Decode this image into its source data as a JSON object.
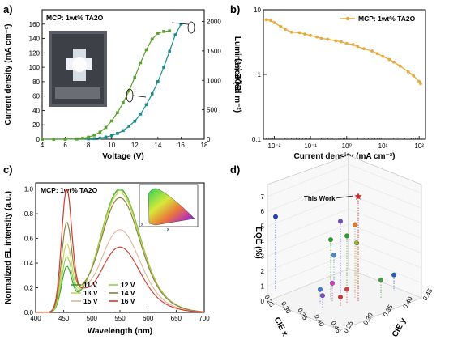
{
  "chart_data": [
    {
      "panel": "a)",
      "type": "line",
      "annotation": "MCP: 1wt% TA2O",
      "xlabel": "Voltage (V)",
      "ylabel": "Current density (mA cm⁻²)",
      "y2label": "Luminance (cd m⁻²)",
      "xlim": [
        4,
        18
      ],
      "ylim": [
        0,
        180
      ],
      "y2lim": [
        0,
        2200
      ],
      "xticks": [
        "4",
        "6",
        "8",
        "10",
        "12",
        "14",
        "16",
        "18"
      ],
      "yticks": [
        "0",
        "20",
        "40",
        "60",
        "80",
        "100",
        "120",
        "140",
        "160"
      ],
      "y2ticks": [
        "0",
        "500",
        "1000",
        "1500",
        "2000"
      ],
      "series": [
        {
          "axis": "left",
          "color": "#1a8c8c",
          "x": [
            4,
            5,
            6,
            7,
            8,
            8.5,
            9,
            9.5,
            10,
            10.5,
            11,
            11.5,
            12,
            12.5,
            13,
            13.5,
            14,
            14.5,
            15,
            15.5,
            16
          ],
          "values": [
            0,
            0,
            0.1,
            0.2,
            0.5,
            0.8,
            1.5,
            3,
            5,
            8,
            12,
            18,
            25,
            35,
            48,
            63,
            80,
            100,
            122,
            145,
            160
          ]
        },
        {
          "axis": "right",
          "color": "#5aa02c",
          "x": [
            4,
            5,
            6,
            7,
            7.5,
            8,
            8.5,
            9,
            9.5,
            10,
            10.5,
            11,
            11.5,
            12,
            12.5,
            13,
            13.5,
            14,
            14.5,
            15
          ],
          "values": [
            0,
            0,
            0,
            5,
            15,
            35,
            70,
            120,
            200,
            310,
            450,
            620,
            820,
            1050,
            1300,
            1520,
            1700,
            1800,
            1830,
            1840
          ]
        }
      ]
    },
    {
      "panel": "b)",
      "type": "line",
      "xlabel": "Current density (mA cm⁻²)",
      "ylabel": "EQE (%)",
      "xscale": "log",
      "yscale": "log",
      "xlim": [
        0.005,
        150
      ],
      "ylim": [
        0.1,
        10
      ],
      "xticks": [
        "10⁻²",
        "10⁻¹",
        "10⁰",
        "10¹",
        "10²"
      ],
      "yticks": [
        "0.1",
        "1",
        "10"
      ],
      "series": [
        {
          "name": "MCP: 1wt% TA2O",
          "color": "#e8a93a",
          "x": [
            0.006,
            0.008,
            0.01,
            0.015,
            0.02,
            0.03,
            0.05,
            0.07,
            0.1,
            0.15,
            0.2,
            0.3,
            0.5,
            0.7,
            1,
            1.5,
            2,
            3,
            5,
            7,
            10,
            15,
            20,
            30,
            50,
            70,
            100,
            110
          ],
          "values": [
            7.0,
            6.8,
            6.3,
            5.5,
            5.0,
            4.5,
            4.4,
            4.2,
            4.0,
            3.8,
            3.6,
            3.5,
            3.3,
            3.2,
            3.0,
            2.9,
            2.7,
            2.5,
            2.3,
            2.1,
            1.9,
            1.7,
            1.55,
            1.35,
            1.1,
            0.95,
            0.78,
            0.72
          ]
        }
      ]
    },
    {
      "panel": "c)",
      "type": "line",
      "annotation": "MCP: 1wt% TA2O",
      "xlabel": "Wavelength (nm)",
      "ylabel": "Normalized EL intensity (a.u.)",
      "xlim": [
        400,
        700
      ],
      "ylim": [
        0,
        1.05
      ],
      "xticks": [
        "400",
        "450",
        "500",
        "550",
        "600",
        "650",
        "700"
      ],
      "yticks": [
        "0.0",
        "0.2",
        "0.4",
        "0.6",
        "0.8",
        "1.0"
      ],
      "series": [
        {
          "name": "11 V",
          "color": "#2ca02c",
          "p1": 0.36,
          "p2": 1.0
        },
        {
          "name": "12 V",
          "color": "#8fd24a",
          "p1": 0.44,
          "p2": 0.99
        },
        {
          "name": "13 V",
          "color": "#c8d04a",
          "p1": 0.55,
          "p2": 0.97
        },
        {
          "name": "14 V",
          "color": "#8a7a3a",
          "p1": 0.73,
          "p2": 0.93
        },
        {
          "name": "15 V",
          "color": "#e3b49a",
          "p1": 1.0,
          "p2": 0.66
        },
        {
          "name": "16 V",
          "color": "#d03828",
          "p1": 1.0,
          "p2": 0.52
        }
      ],
      "inset": {
        "type": "CIE chromaticity diagram",
        "xlabel": "x",
        "ylabel": "y"
      }
    },
    {
      "panel": "d)",
      "type": "scatter",
      "xlabel": "CIE x",
      "ylabel": "CIE y",
      "zlabel": "EQE (%)",
      "xticks": [
        "0.25",
        "0.30",
        "0.35",
        "0.40",
        "0.45"
      ],
      "yticks": [
        "0.45",
        "0.40",
        "0.35",
        "0.30",
        "0.25"
      ],
      "zticks": [
        "0",
        "1",
        "2",
        "3",
        "4",
        "5",
        "6",
        "7"
      ],
      "highlight": {
        "label": "This Work",
        "eqe": 7.0,
        "color": "#d62728"
      },
      "points": [
        {
          "eqe": 5.0,
          "color": "#1f3fbf"
        },
        {
          "eqe": 4.0,
          "color": "#2ca02c"
        },
        {
          "eqe": 4.8,
          "color": "#6f4fbf"
        },
        {
          "eqe": 4.9,
          "color": "#e07a2a"
        },
        {
          "eqe": 3.5,
          "color": "#2ca02c"
        },
        {
          "eqe": 2.7,
          "color": "#8fbf3a"
        },
        {
          "eqe": 2.0,
          "color": "#3a8fd0"
        },
        {
          "eqe": 1.2,
          "color": "#d040c0"
        },
        {
          "eqe": 1.0,
          "color": "#3a7fd0"
        },
        {
          "eqe": 0.9,
          "color": "#d04040"
        },
        {
          "eqe": 1.2,
          "color": "#40a040"
        },
        {
          "eqe": 0.8,
          "color": "#7a4fbf"
        },
        {
          "eqe": 1.1,
          "color": "#2060c0"
        },
        {
          "eqe": 0.6,
          "color": "#d83030"
        }
      ]
    }
  ]
}
